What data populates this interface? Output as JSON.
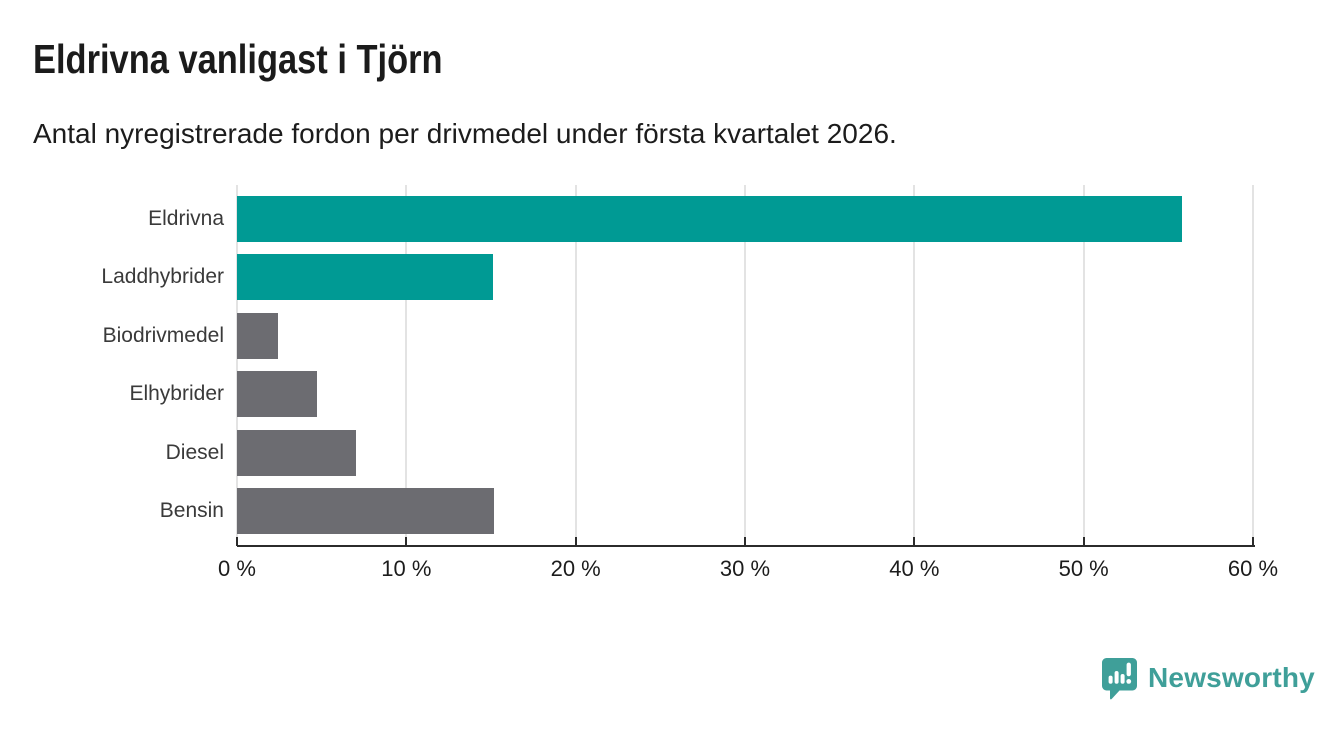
{
  "header": {
    "title": "Eldrivna vanligast i Tjörn",
    "subtitle": "Antal nyregistrerade fordon per drivmedel under första kvartalet 2026."
  },
  "chart_data": {
    "type": "bar",
    "orientation": "horizontal",
    "title": "Eldrivna vanligast i Tjörn",
    "subtitle": "Antal nyregistrerade fordon per drivmedel under första kvartalet 2026.",
    "categories": [
      "Eldrivna",
      "Laddhybrider",
      "Biodrivmedel",
      "Elhybrider",
      "Diesel",
      "Bensin"
    ],
    "values": [
      55.8,
      15.1,
      2.4,
      4.7,
      7.0,
      15.2
    ],
    "unit": "%",
    "xlim": [
      0,
      60
    ],
    "x_ticks": [
      0,
      10,
      20,
      30,
      40,
      50,
      60
    ],
    "x_tick_labels": [
      "0 %",
      "10 %",
      "20 %",
      "30 %",
      "40 %",
      "50 %",
      "60 %"
    ],
    "grid": "vertical",
    "legend": "none",
    "colors": {
      "highlight_bar": "#009a94",
      "default_bar": "#6c6c71",
      "bar_colors": [
        "#009a94",
        "#009a94",
        "#6c6c71",
        "#6c6c71",
        "#6c6c71",
        "#6c6c71"
      ],
      "gridline": "#e3e3e3",
      "axis": "#2b2b2b"
    }
  },
  "branding": {
    "logo_text": "Newsworthy",
    "logo_color": "#3f9f99",
    "logo_icon": "newsworthy-speech-bubble-bar-chart-icon"
  }
}
